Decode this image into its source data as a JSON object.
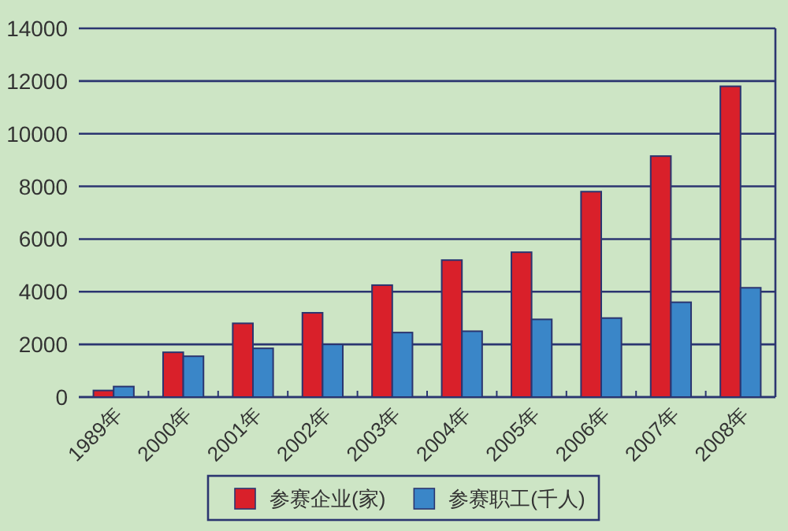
{
  "chart_data": {
    "type": "bar",
    "categories": [
      "1989年",
      "2000年",
      "2001年",
      "2002年",
      "2003年",
      "2004年",
      "2005年",
      "2006年",
      "2007年",
      "2008年"
    ],
    "series": [
      {
        "name": "参赛企业(家)",
        "color": "#d9202a",
        "values": [
          250,
          1700,
          2800,
          3200,
          4250,
          5200,
          5500,
          7800,
          9150,
          11800
        ]
      },
      {
        "name": "参赛职工(千人)",
        "color": "#3a86c8",
        "values": [
          400,
          1550,
          1850,
          2000,
          2450,
          2500,
          2950,
          3000,
          3600,
          4150
        ]
      }
    ],
    "ylim": [
      0,
      14000
    ],
    "yticks": [
      0,
      2000,
      4000,
      6000,
      8000,
      10000,
      12000,
      14000
    ],
    "grid": "y",
    "legend": "bottom"
  }
}
